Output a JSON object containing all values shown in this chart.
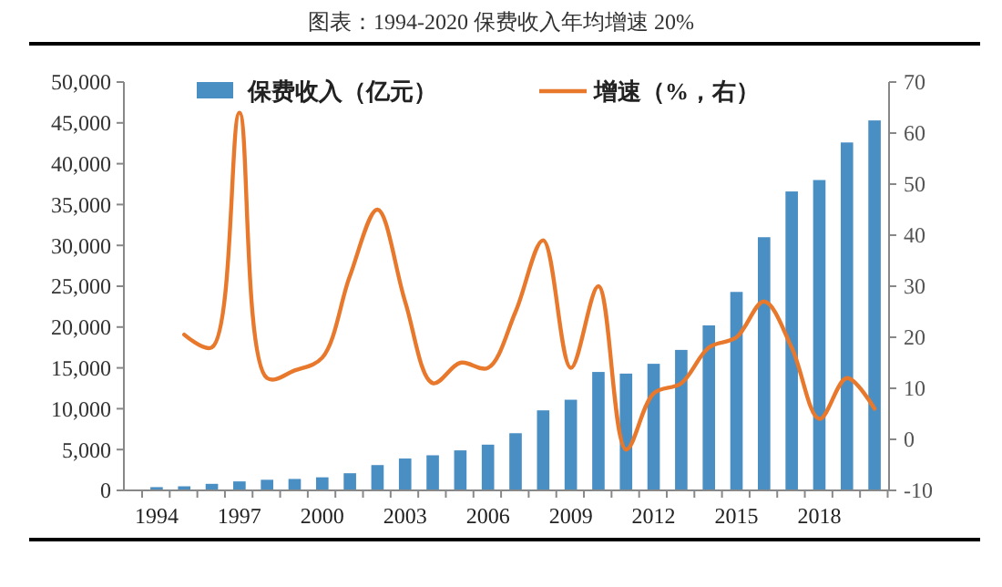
{
  "chart_data": {
    "type": "bar",
    "title": "图表：1994-2020 保费收入年均增速 20%",
    "categories": [
      "1994",
      null,
      null,
      "1997",
      null,
      null,
      "2000",
      null,
      null,
      "2003",
      null,
      null,
      "2006",
      null,
      null,
      "2009",
      null,
      null,
      "2012",
      null,
      null,
      "2015",
      null,
      null,
      "2018",
      null,
      null
    ],
    "series": [
      {
        "name": "保费收入（亿元）",
        "color": "#4a8fc4",
        "values": [
          400,
          500,
          800,
          1100,
          1300,
          1400,
          1600,
          2100,
          3100,
          3900,
          4300,
          4900,
          5600,
          7000,
          9800,
          11100,
          14500,
          14300,
          15500,
          17200,
          20200,
          24300,
          31000,
          36600,
          38000,
          42600,
          45300
        ]
      },
      {
        "name": "增速（%，右）",
        "type": "line",
        "axis": "y2",
        "color": "#e8782c",
        "values": [
          null,
          20.5,
          18,
          64,
          12,
          13.5,
          16,
          32,
          45,
          27,
          11,
          15,
          14,
          25,
          39,
          14,
          30,
          -2,
          9,
          11,
          18,
          20,
          27,
          18,
          4,
          12,
          6
        ]
      }
    ],
    "ylim": [
      0,
      50000
    ],
    "yticks": [
      0,
      {
        "value": 5000,
        "label": "5,000"
      },
      {
        "value": 10000,
        "label": "10,000"
      },
      {
        "value": 15000,
        "label": "15,000"
      },
      {
        "value": 20000,
        "label": "20,000"
      },
      {
        "value": 25000,
        "label": "25,000"
      },
      {
        "value": 30000,
        "label": "30,000"
      },
      {
        "value": 35000,
        "label": "35,000"
      },
      {
        "value": 40000,
        "label": "40,000"
      },
      {
        "value": 45000,
        "label": "45,000"
      },
      {
        "value": 50000,
        "label": "50,000"
      }
    ],
    "y2lim": [
      -10,
      70
    ],
    "y2ticks": [
      -10,
      0,
      10,
      20,
      30,
      40,
      50,
      60,
      70
    ],
    "legend": "top",
    "grid": false
  }
}
